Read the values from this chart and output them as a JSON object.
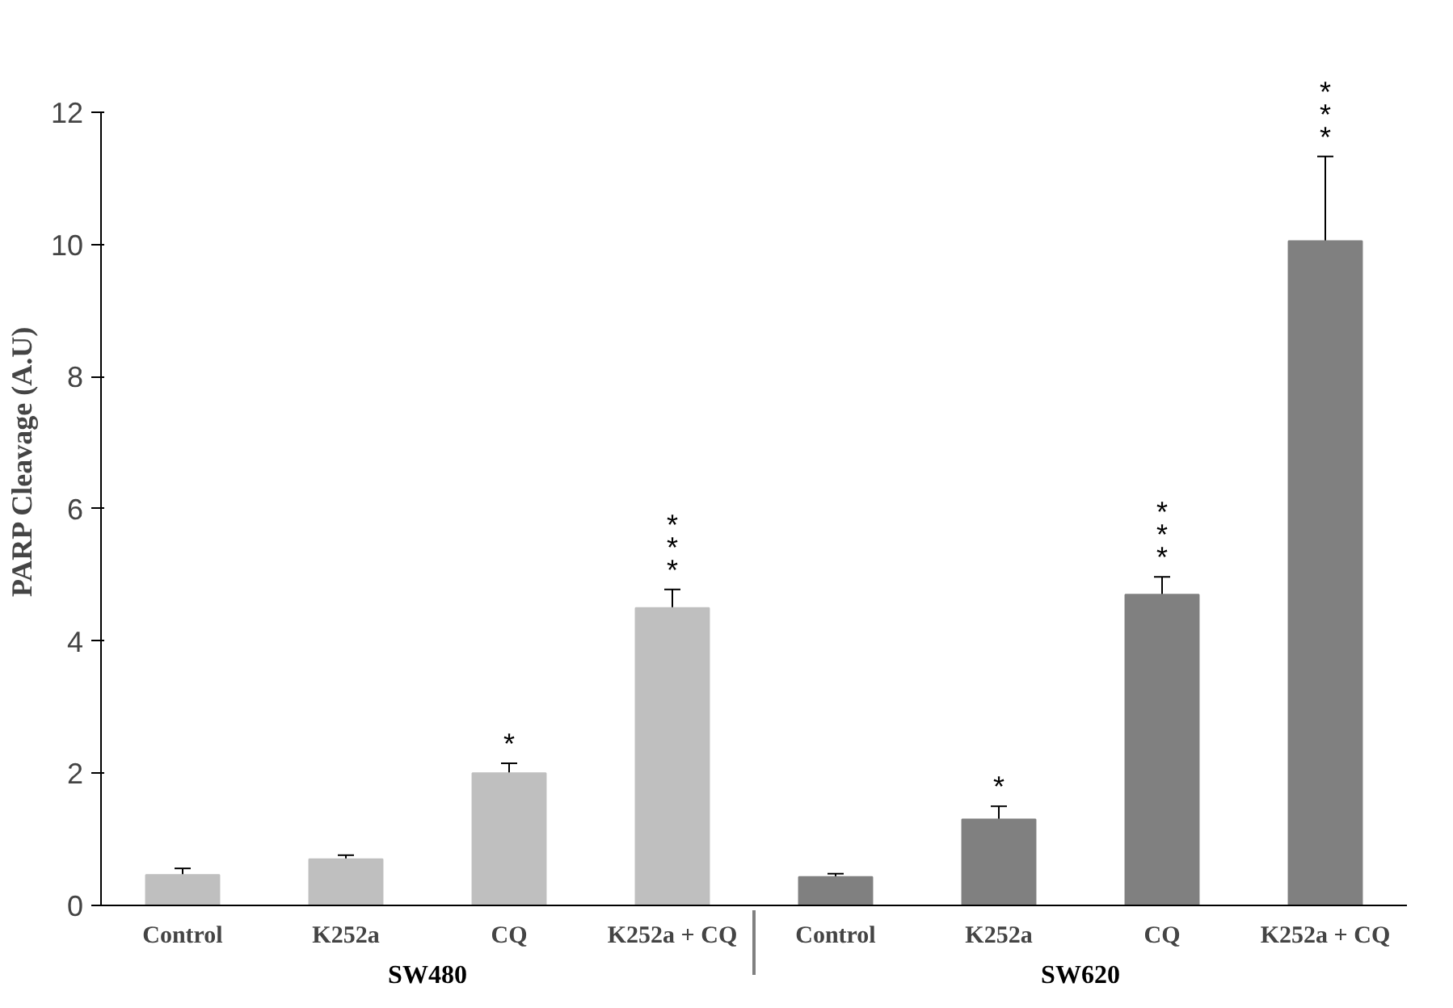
{
  "chart_data": {
    "type": "bar",
    "ylabel": "PARP Cleavage (A.U)",
    "categories": [
      "Control",
      "K252a",
      "CQ",
      "K252a + CQ",
      "Control",
      "K252a",
      "CQ",
      "K252a + CQ"
    ],
    "series": [
      {
        "name": "SW480",
        "color": "#bfbfbf",
        "values": [
          0.46,
          0.7,
          2.0,
          4.5,
          null,
          null,
          null,
          null
        ],
        "errors": [
          0.1,
          0.06,
          0.15,
          0.28,
          null,
          null,
          null,
          null
        ],
        "value_labels": [
          null,
          null,
          "*",
          "***",
          null,
          null,
          null,
          null
        ]
      },
      {
        "name": "SW620",
        "color": "#808080",
        "values": [
          null,
          null,
          null,
          null,
          0.43,
          1.3,
          4.7,
          10.05
        ],
        "errors": [
          null,
          null,
          null,
          null,
          0.05,
          0.2,
          0.27,
          1.28
        ],
        "value_labels": [
          null,
          null,
          null,
          null,
          null,
          "*",
          "***",
          "***"
        ]
      }
    ],
    "ylim": [
      0,
      12
    ],
    "yticks": [
      0,
      2,
      4,
      6,
      8,
      10,
      12
    ],
    "grid": false
  }
}
